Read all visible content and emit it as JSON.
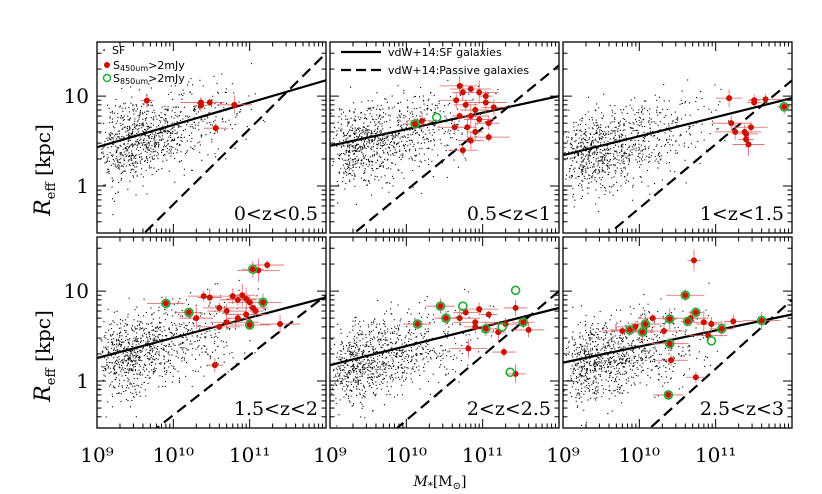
{
  "chart_data": {
    "type": "scatter",
    "xlabel": "M*[M⊙]",
    "ylabel": "Reff [kpc]",
    "x_scale": "log",
    "y_scale": "log",
    "xlim": [
      1000000000.0,
      1000000000000.0
    ],
    "ylim": [
      0.3,
      40
    ],
    "x_ticks": [
      "10⁹",
      "10¹⁰",
      "10¹¹"
    ],
    "y_ticks": [
      "1",
      "10"
    ],
    "legend_left": {
      "entries": [
        "SF",
        "S450um>2mJy",
        "S850um>2mJy"
      ],
      "placement": "top-left"
    },
    "legend_right": {
      "entries": [
        "vdW+14:SF galaxies",
        "vdW+14:Passive galaxies"
      ],
      "placement": "top-right"
    },
    "colors": {
      "sf": "#000000",
      "s450": "#cc1100",
      "s850": "#22aa33",
      "errorbar": "#e06060"
    },
    "panels": [
      {
        "label": "0<z<0.5",
        "sf_relation": [
          [
            1000000000.0,
            2.7
          ],
          [
            1000000000000.0,
            15
          ]
        ],
        "passive_relation": [
          [
            1000000000.0,
            0.09
          ],
          [
            1000000000000.0,
            30
          ]
        ],
        "s450": [
          [
            4500000000.0,
            8.9
          ],
          [
            23000000000.0,
            8.5
          ],
          [
            23000000000.0,
            7.9
          ],
          [
            63000000000.0,
            8.0
          ],
          [
            36000000000.0,
            4.4
          ],
          [
            30000000000.0,
            8.5
          ]
        ],
        "s850": []
      },
      {
        "label": "0.5<z<1",
        "sf_relation": [
          [
            1000000000.0,
            2.8
          ],
          [
            1000000000000.0,
            10
          ]
        ],
        "passive_relation": [
          [
            1000000000.0,
            0.18
          ],
          [
            1000000000000.0,
            22
          ]
        ],
        "s450": [
          [
            13000000000.0,
            4.9
          ],
          [
            50000000000.0,
            13
          ],
          [
            55000000000.0,
            11
          ],
          [
            70000000000.0,
            12
          ],
          [
            90000000000.0,
            11
          ],
          [
            110000000000.0,
            10
          ],
          [
            45000000000.0,
            9
          ],
          [
            60000000000.0,
            8
          ],
          [
            80000000000.0,
            7
          ],
          [
            110000000000.0,
            8.5
          ],
          [
            140000000000.0,
            7.5
          ],
          [
            50000000000.0,
            6
          ],
          [
            70000000000.0,
            6
          ],
          [
            90000000000.0,
            5.5
          ],
          [
            120000000000.0,
            5
          ],
          [
            43000000000.0,
            4.5
          ],
          [
            63000000000.0,
            4.5
          ],
          [
            80000000000.0,
            4
          ],
          [
            120000000000.0,
            3.5
          ],
          [
            70000000000.0,
            3.2
          ],
          [
            55000000000.0,
            2.5
          ],
          [
            16000000000.0,
            5.3
          ]
        ],
        "s850": [
          [
            13000000000.0,
            4.9
          ],
          [
            25000000000.0,
            5.8
          ]
        ]
      },
      {
        "label": "1<z<1.5",
        "sf_relation": [
          [
            1000000000.0,
            2.2
          ],
          [
            1000000000000.0,
            9.5
          ]
        ],
        "passive_relation": [
          [
            1000000000.0,
            0.11
          ],
          [
            1000000000000.0,
            15
          ]
        ],
        "s450": [
          [
            150000000000.0,
            9.5
          ],
          [
            160000000000.0,
            5
          ],
          [
            240000000000.0,
            4
          ],
          [
            180000000000.0,
            4
          ],
          [
            250000000000.0,
            3.8
          ],
          [
            270000000000.0,
            2.9
          ],
          [
            320000000000.0,
            9
          ],
          [
            450000000000.0,
            9.2
          ],
          [
            320000000000.0,
            8.5
          ],
          [
            250000000000.0,
            3.3
          ],
          [
            290000000000.0,
            4.5
          ],
          [
            790000000000.0,
            7.6
          ]
        ],
        "s850": [
          [
            790000000000.0,
            7.6
          ]
        ]
      },
      {
        "label": "1.5<z<2",
        "sf_relation": [
          [
            1000000000.0,
            1.8
          ],
          [
            1000000000000.0,
            8.5
          ]
        ],
        "passive_relation": [
          [
            1000000000.0,
            0.09
          ],
          [
            1000000000000.0,
            9
          ]
        ],
        "s450": [
          [
            8000000000.0,
            7.3
          ],
          [
            16000000000.0,
            5.8
          ],
          [
            20000000000.0,
            5
          ],
          [
            25000000000.0,
            8.8
          ],
          [
            30000000000.0,
            8.5
          ],
          [
            40000000000.0,
            6.5
          ],
          [
            50000000000.0,
            6
          ],
          [
            60000000000.0,
            8.8
          ],
          [
            70000000000.0,
            8
          ],
          [
            80000000000.0,
            9
          ],
          [
            90000000000.0,
            8.2
          ],
          [
            100000000000.0,
            7.5
          ],
          [
            110000000000.0,
            6.5
          ],
          [
            50000000000.0,
            4.5
          ],
          [
            70000000000.0,
            5
          ],
          [
            90000000000.0,
            5.5
          ],
          [
            100000000000.0,
            4.5
          ],
          [
            120000000000.0,
            6
          ],
          [
            40000000000.0,
            4
          ],
          [
            100000000000.0,
            4.2
          ],
          [
            110000000000.0,
            17.5
          ],
          [
            130000000000.0,
            17
          ],
          [
            170000000000.0,
            19.5
          ],
          [
            150000000000.0,
            7.5
          ],
          [
            250000000000.0,
            4.3
          ],
          [
            35000000000.0,
            1.5
          ]
        ],
        "s850": [
          [
            8000000000.0,
            7.3
          ],
          [
            16000000000.0,
            5.8
          ],
          [
            110000000000.0,
            17.5
          ],
          [
            150000000000.0,
            7.5
          ],
          [
            100000000000.0,
            4.2
          ]
        ]
      },
      {
        "label": "2<z<2.5",
        "sf_relation": [
          [
            1000000000.0,
            1.5
          ],
          [
            1000000000000.0,
            6.5
          ]
        ],
        "passive_relation": [
          [
            1000000000.0,
            0.07
          ],
          [
            1000000000000.0,
            10
          ]
        ],
        "s450": [
          [
            28000000000.0,
            6.8
          ],
          [
            33000000000.0,
            5
          ],
          [
            50000000000.0,
            5
          ],
          [
            60000000000.0,
            5.8
          ],
          [
            80000000000.0,
            4
          ],
          [
            90000000000.0,
            6.3
          ],
          [
            120000000000.0,
            5.5
          ],
          [
            160000000000.0,
            3.5
          ],
          [
            270000000000.0,
            6.5
          ],
          [
            340000000000.0,
            4.5
          ],
          [
            400000000000.0,
            3.7
          ],
          [
            14000000000.0,
            4.3
          ],
          [
            80000000000.0,
            4.5
          ],
          [
            110000000000.0,
            3.8
          ],
          [
            200000000000.0,
            4.3
          ],
          [
            190000000000.0,
            2.1
          ],
          [
            270000000000.0,
            1.2
          ],
          [
            65000000000.0,
            2.3
          ]
        ],
        "s850": [
          [
            28000000000.0,
            6.8
          ],
          [
            55000000000.0,
            6.8
          ],
          [
            110000000000.0,
            3.8
          ],
          [
            180000000000.0,
            4
          ],
          [
            270000000000.0,
            10.2
          ],
          [
            340000000000.0,
            4.5
          ],
          [
            230000000000.0,
            1.25
          ],
          [
            14000000000.0,
            4.3
          ],
          [
            33000000000.0,
            5
          ]
        ]
      },
      {
        "label": "2.5<z<3",
        "sf_relation": [
          [
            1000000000.0,
            1.6
          ],
          [
            1000000000000.0,
            5.5
          ]
        ],
        "passive_relation": [
          [
            1000000000.0,
            0.04
          ],
          [
            1000000000000.0,
            8
          ]
        ],
        "s450": [
          [
            6000000000.0,
            3.6
          ],
          [
            7500000000.0,
            3.7
          ],
          [
            8800000000.0,
            4
          ],
          [
            11000000000.0,
            3.5
          ],
          [
            12000000000.0,
            4.3
          ],
          [
            15000000000.0,
            5
          ],
          [
            21000000000.0,
            3.6
          ],
          [
            26000000000.0,
            1.7
          ],
          [
            40000000000.0,
            9
          ],
          [
            43000000000.0,
            4.6
          ],
          [
            47000000000.0,
            5
          ],
          [
            55000000000.0,
            5.8
          ],
          [
            55000000000.0,
            1.1
          ],
          [
            52000000000.0,
            22
          ],
          [
            70000000000.0,
            4.5
          ],
          [
            80000000000.0,
            3.2
          ],
          [
            88000000000.0,
            4.3
          ],
          [
            120000000000.0,
            3.8
          ],
          [
            170000000000.0,
            4.6
          ],
          [
            400000000000.0,
            4.7
          ],
          [
            24000000000.0,
            0.7
          ],
          [
            25000000000.0,
            4.9
          ],
          [
            25000000000.0,
            2.6
          ]
        ],
        "s850": [
          [
            7500000000.0,
            3.7
          ],
          [
            11000000000.0,
            3.5
          ],
          [
            12000000000.0,
            4.3
          ],
          [
            25000000000.0,
            4.9
          ],
          [
            40000000000.0,
            9
          ],
          [
            43000000000.0,
            4.6
          ],
          [
            55000000000.0,
            5.8
          ],
          [
            88000000000.0,
            2.8
          ],
          [
            120000000000.0,
            3.8
          ],
          [
            400000000000.0,
            4.7
          ],
          [
            24000000000.0,
            0.7
          ],
          [
            25000000000.0,
            2.6
          ]
        ]
      }
    ]
  }
}
